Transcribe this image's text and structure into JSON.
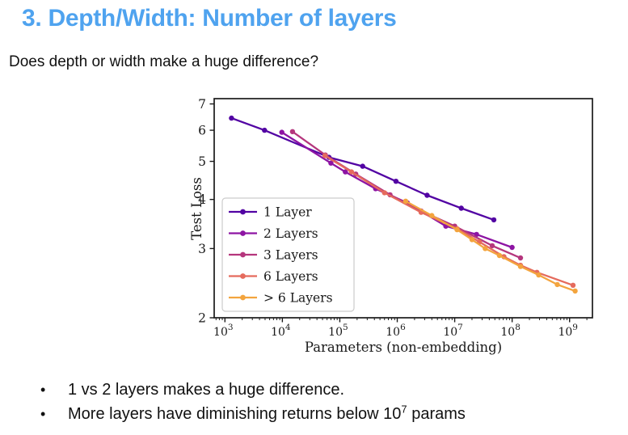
{
  "page": {
    "background": "#ffffff"
  },
  "header": {
    "title": "3. Depth/Width: Number of layers",
    "title_color": "#4fa3ef"
  },
  "subtitle": "Does depth or width make a huge difference?",
  "bullets": [
    {
      "pre": "1 vs 2 layers makes a huge difference.",
      "sup": "",
      "post": ""
    },
    {
      "pre": "More layers have diminishing returns below 10",
      "sup": "7",
      "post": " params"
    }
  ],
  "chart_data": {
    "type": "line",
    "title": "",
    "xlabel": "Parameters (non-embedding)",
    "ylabel": "Test Loss",
    "x_scale": "log",
    "y_scale": "log",
    "xlim": [
      650,
      2500000000
    ],
    "ylim": [
      2,
      7.22
    ],
    "x_ticks": [
      1000,
      10000,
      100000,
      1000000,
      10000000,
      100000000,
      1000000000
    ],
    "y_ticks": [
      2,
      3,
      4,
      5,
      6,
      7
    ],
    "grid": false,
    "legend_position": "lower-left-inside",
    "frame_color": "#1a1a1a",
    "text_color": "#1a1a1a",
    "series": [
      {
        "name": "1 Layer",
        "color": "#5203a3",
        "points": [
          [
            1300,
            6.44
          ],
          [
            4900,
            6.0
          ],
          [
            65000,
            5.12
          ],
          [
            250000,
            4.86
          ],
          [
            950000,
            4.45
          ],
          [
            3300000,
            4.1
          ],
          [
            13000000,
            3.8
          ],
          [
            48000000,
            3.55
          ]
        ]
      },
      {
        "name": "2 Layers",
        "color": "#8d14a3",
        "points": [
          [
            9800,
            5.93
          ],
          [
            70000,
            4.95
          ],
          [
            125000,
            4.7
          ],
          [
            420000,
            4.26
          ],
          [
            1500000,
            3.92
          ],
          [
            7000000,
            3.42
          ],
          [
            24000000,
            3.26
          ],
          [
            100000000,
            3.02
          ]
        ]
      },
      {
        "name": "3 Layers",
        "color": "#b5367d",
        "points": [
          [
            15000,
            5.95
          ],
          [
            56000,
            5.19
          ],
          [
            190000,
            4.64
          ],
          [
            750000,
            4.11
          ],
          [
            2600000,
            3.74
          ],
          [
            10000000,
            3.42
          ],
          [
            45000000,
            3.05
          ],
          [
            140000000,
            2.84
          ]
        ]
      },
      {
        "name": "6 Layers",
        "color": "#e56b5d",
        "points": [
          [
            55000,
            5.17
          ],
          [
            160000,
            4.7
          ],
          [
            600000,
            4.16
          ],
          [
            2600000,
            3.71
          ],
          [
            11000000,
            3.37
          ],
          [
            27000000,
            3.12
          ],
          [
            72000000,
            2.86
          ],
          [
            140000000,
            2.72
          ],
          [
            270000000,
            2.61
          ],
          [
            1150000000,
            2.42
          ]
        ]
      },
      {
        "name": "> 6 Layers",
        "color": "#f3a43e",
        "points": [
          [
            1400000,
            3.96
          ],
          [
            4000000,
            3.64
          ],
          [
            11000000,
            3.35
          ],
          [
            20000000,
            3.16
          ],
          [
            34000000,
            3.0
          ],
          [
            60000000,
            2.88
          ],
          [
            140000000,
            2.7
          ],
          [
            290000000,
            2.57
          ],
          [
            610000000,
            2.43
          ],
          [
            1250000000,
            2.34
          ]
        ]
      }
    ]
  }
}
